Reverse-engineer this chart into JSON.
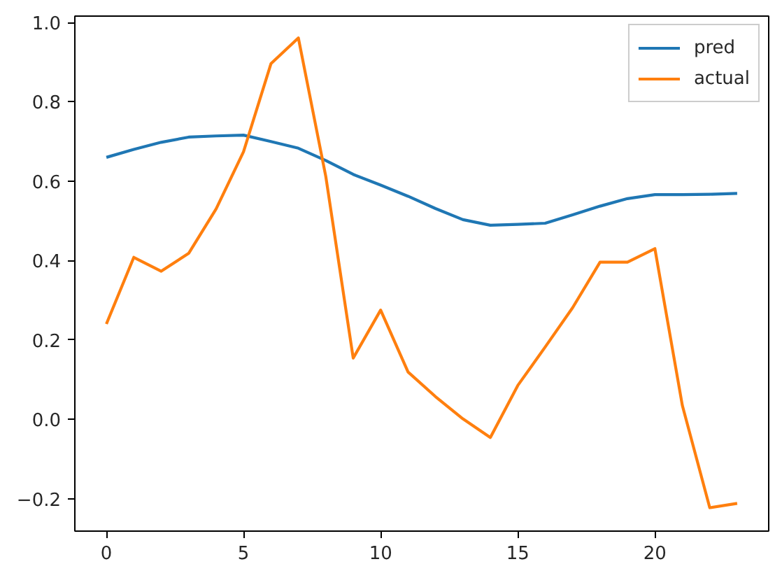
{
  "chart_data": {
    "type": "line",
    "x": [
      0,
      1,
      2,
      3,
      4,
      5,
      6,
      7,
      8,
      9,
      10,
      11,
      12,
      13,
      14,
      15,
      16,
      17,
      18,
      19,
      20,
      21,
      22,
      23
    ],
    "series": [
      {
        "name": "pred",
        "color": "#1f77b4",
        "values": [
          0.66,
          0.68,
          0.698,
          0.711,
          0.714,
          0.716,
          0.7,
          0.683,
          0.652,
          0.617,
          0.59,
          0.562,
          0.531,
          0.503,
          0.489,
          0.491,
          0.494,
          0.515,
          0.537,
          0.556,
          0.566,
          0.566,
          0.567,
          0.569
        ]
      },
      {
        "name": "actual",
        "color": "#ff7f0e",
        "values": [
          0.24,
          0.408,
          0.373,
          0.418,
          0.53,
          0.674,
          0.896,
          0.961,
          0.612,
          0.154,
          0.275,
          0.119,
          0.057,
          0.001,
          -0.046,
          0.085,
          0.182,
          0.281,
          0.396,
          0.396,
          0.43,
          0.035,
          -0.223,
          -0.212
        ]
      }
    ],
    "xlim": [
      -1.15,
      24.15
    ],
    "ylim": [
      -0.282,
      1.016
    ],
    "xticks": [
      0,
      5,
      10,
      15,
      20
    ],
    "yticks": [
      {
        "value": -0.2,
        "label": "−0.2"
      },
      {
        "value": 0.0,
        "label": "0.0"
      },
      {
        "value": 0.2,
        "label": "0.2"
      },
      {
        "value": 0.4,
        "label": "0.4"
      },
      {
        "value": 0.6,
        "label": "0.6"
      },
      {
        "value": 0.8,
        "label": "0.8"
      },
      {
        "value": 1.0,
        "label": "1.0"
      }
    ],
    "legend": "top right",
    "marker": "none",
    "line_style": "solid"
  }
}
